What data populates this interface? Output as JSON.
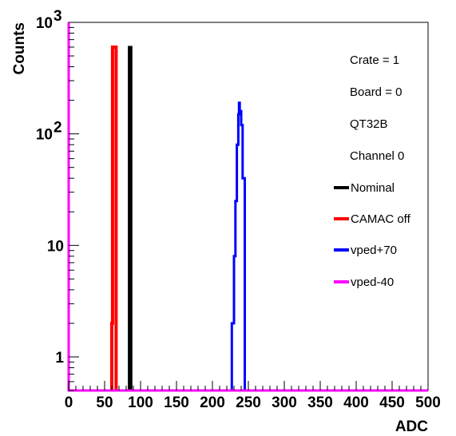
{
  "chart_data": {
    "type": "line",
    "xlabel": "ADC",
    "ylabel": "Counts",
    "xlim": [
      0,
      500
    ],
    "ylim": [
      0.5,
      1000
    ],
    "y_scale": "log",
    "grid": false,
    "legend_position": "top-right",
    "x_ticks": [
      "0",
      "50",
      "100",
      "150",
      "200",
      "250",
      "300",
      "350",
      "400",
      "450",
      "500"
    ],
    "y_ticks": [
      {
        "value": 1,
        "label": "1"
      },
      {
        "value": 10,
        "label": "10"
      },
      {
        "value": 100,
        "label": "10",
        "exponent": "2"
      },
      {
        "value": 1000,
        "label": "10",
        "exponent": "3"
      }
    ],
    "info_lines": [
      "Crate = 1",
      "Board = 0",
      "QT32B",
      "Channel 0"
    ],
    "series": [
      {
        "name": "Nominal",
        "color": "#000000",
        "points": [
          [
            84,
            600
          ],
          [
            86,
            600
          ],
          [
            87,
            0.5
          ]
        ]
      },
      {
        "name": "CAMAC off",
        "color": "#ff0000",
        "points": [
          [
            60,
            2
          ],
          [
            61,
            600
          ],
          [
            63,
            600
          ],
          [
            65,
            600
          ],
          [
            66,
            0.5
          ]
        ]
      },
      {
        "name": "vped+70",
        "color": "#0000ff",
        "points": [
          [
            227,
            2
          ],
          [
            230,
            8
          ],
          [
            232,
            25
          ],
          [
            234,
            80
          ],
          [
            236,
            150
          ],
          [
            237,
            190
          ],
          [
            238,
            160
          ],
          [
            240,
            120
          ],
          [
            242,
            40
          ],
          [
            245,
            3
          ]
        ]
      },
      {
        "name": "vped-40",
        "color": "#ff00ff",
        "points": [
          [
            0,
            1000
          ],
          [
            0,
            0.5
          ],
          [
            500,
            0.5
          ]
        ]
      }
    ]
  }
}
